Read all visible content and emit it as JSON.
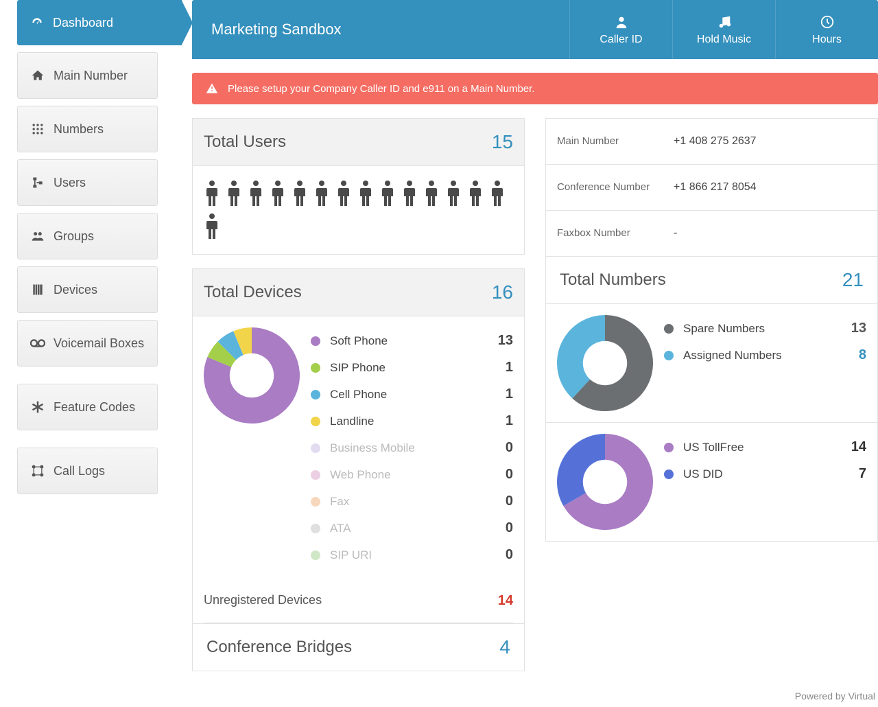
{
  "sidebar": {
    "items": [
      {
        "label": "Dashboard",
        "icon": "gauge",
        "active": true
      },
      {
        "label": "Main Number",
        "icon": "home"
      },
      {
        "label": "Numbers",
        "icon": "grid"
      },
      {
        "label": "Users",
        "icon": "users-tree"
      },
      {
        "label": "Groups",
        "icon": "group"
      },
      {
        "label": "Devices",
        "icon": "phone-book"
      },
      {
        "label": "Voicemail Boxes",
        "icon": "voicemail"
      },
      {
        "label": "Feature Codes",
        "icon": "asterisk"
      },
      {
        "label": "Call Logs",
        "icon": "calllog"
      }
    ]
  },
  "header": {
    "title": "Marketing Sandbox",
    "buttons": [
      {
        "label": "Caller ID",
        "icon": "person"
      },
      {
        "label": "Hold Music",
        "icon": "music"
      },
      {
        "label": "Hours",
        "icon": "clock"
      }
    ]
  },
  "alert": {
    "text": "Please setup your Company Caller ID and e911 on a Main Number."
  },
  "users_card": {
    "title": "Total Users",
    "count": "15",
    "icon_count": 15,
    "icon_color": "#4a4a4a"
  },
  "devices_card": {
    "title": "Total Devices",
    "count": "16",
    "chart": {
      "type": "donut",
      "background": "#ffffff",
      "inner_radius_pct": 46,
      "outer_radius_pct": 100,
      "slices": [
        {
          "label": "Soft Phone",
          "value": 13,
          "color": "#a97cc4"
        },
        {
          "label": "SIP Phone",
          "value": 1,
          "color": "#a4cf4a"
        },
        {
          "label": "Cell Phone",
          "value": 1,
          "color": "#5bb4dc"
        },
        {
          "label": "Landline",
          "value": 1,
          "color": "#f2d44b"
        },
        {
          "label": "Business Mobile",
          "value": 0,
          "color": "#c6b9e3"
        },
        {
          "label": "Web Phone",
          "value": 0,
          "color": "#d9a0c6"
        },
        {
          "label": "Fax",
          "value": 0,
          "color": "#f2b27a"
        },
        {
          "label": "ATA",
          "value": 0,
          "color": "#bfbfbf"
        },
        {
          "label": "SIP URI",
          "value": 0,
          "color": "#9fcf8e"
        }
      ]
    },
    "unregistered": {
      "label": "Unregistered Devices",
      "value": "14",
      "value_color": "#d43a2a"
    }
  },
  "conference_card": {
    "title": "Conference Bridges",
    "count": "4"
  },
  "info_card": {
    "rows": [
      {
        "label": "Main Number",
        "value": "+1 408 275 2637"
      },
      {
        "label": "Conference Number",
        "value": "+1 866 217 8054"
      },
      {
        "label": "Faxbox Number",
        "value": "-"
      }
    ]
  },
  "numbers_card": {
    "title": "Total Numbers",
    "count": "21",
    "chart1": {
      "type": "donut",
      "inner_radius_pct": 46,
      "outer_radius_pct": 100,
      "slices": [
        {
          "label": "Spare Numbers",
          "value": 13,
          "color": "#6b6f72",
          "value_color": "#555"
        },
        {
          "label": "Assigned Numbers",
          "value": 8,
          "color": "#5bb4dc",
          "value_color": "#3490bd"
        }
      ]
    },
    "chart2": {
      "type": "donut",
      "inner_radius_pct": 46,
      "outer_radius_pct": 100,
      "slices": [
        {
          "label": "US TollFree",
          "value": 14,
          "color": "#a97cc4",
          "value_color": "#333"
        },
        {
          "label": "US DID",
          "value": 7,
          "color": "#5571d8",
          "value_color": "#333"
        }
      ]
    }
  },
  "footer": {
    "text": "Powered by Virtual"
  }
}
